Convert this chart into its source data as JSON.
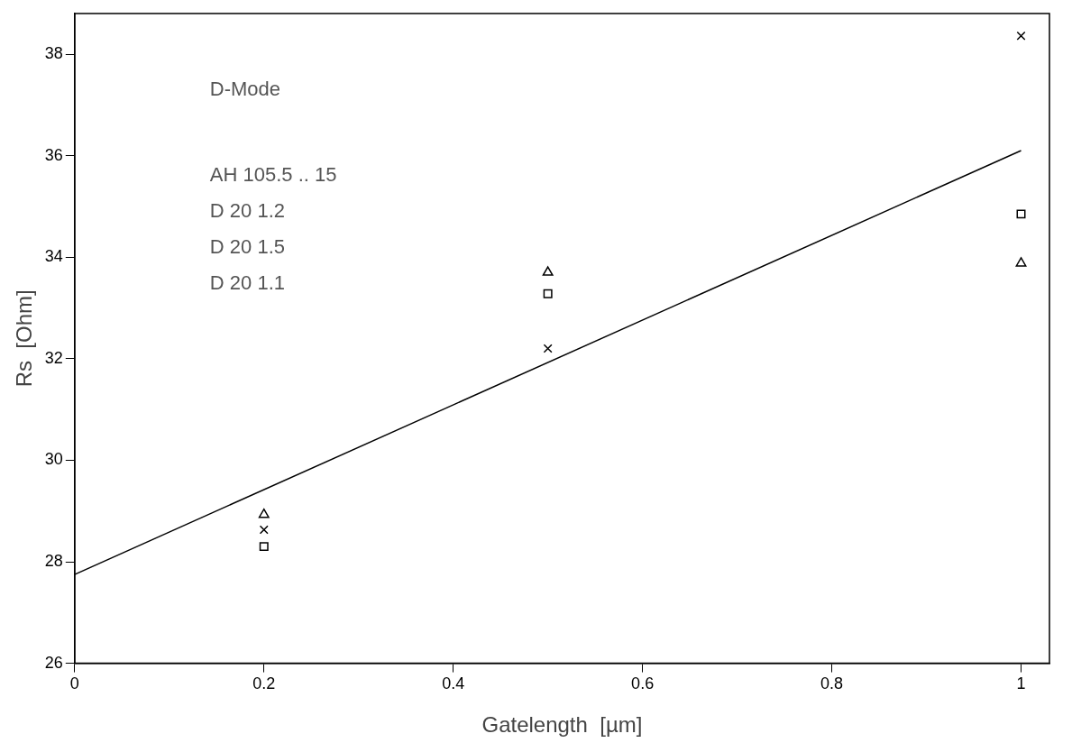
{
  "chart_data": {
    "type": "scatter",
    "xlabel": "Gatelength  [µm]",
    "ylabel": "Rs  [Ohm]",
    "xlim": [
      0,
      1.03
    ],
    "xticks": [
      0,
      0.2,
      0.4,
      0.6,
      0.8,
      1
    ],
    "ylim": [
      26,
      38.8
    ],
    "yticks": [
      26,
      28,
      30,
      32,
      34,
      36,
      38
    ],
    "grid": false,
    "legend": false,
    "annotations": [
      "D-Mode",
      "AH 105.5 .. 15",
      "D 20 1.2",
      "D 20 1.5",
      "D 20 1.1"
    ],
    "series": [
      {
        "type": "scatter",
        "marker": "cross",
        "color": "#000000",
        "x": [
          0.2,
          0.5,
          1
        ],
        "values": [
          28.63,
          32.2,
          38.36
        ]
      },
      {
        "type": "scatter",
        "marker": "square",
        "color": "#000000",
        "x": [
          0.2,
          0.5,
          1
        ],
        "values": [
          28.3,
          33.28,
          34.85
        ]
      },
      {
        "type": "scatter",
        "marker": "triangle",
        "color": "#000000",
        "x": [
          0.2,
          0.5,
          1
        ],
        "values": [
          28.93,
          33.7,
          33.88
        ]
      },
      {
        "type": "line",
        "marker": "none",
        "color": "#000000",
        "x": [
          0,
          1
        ],
        "values": [
          27.75,
          36.1
        ]
      }
    ]
  }
}
